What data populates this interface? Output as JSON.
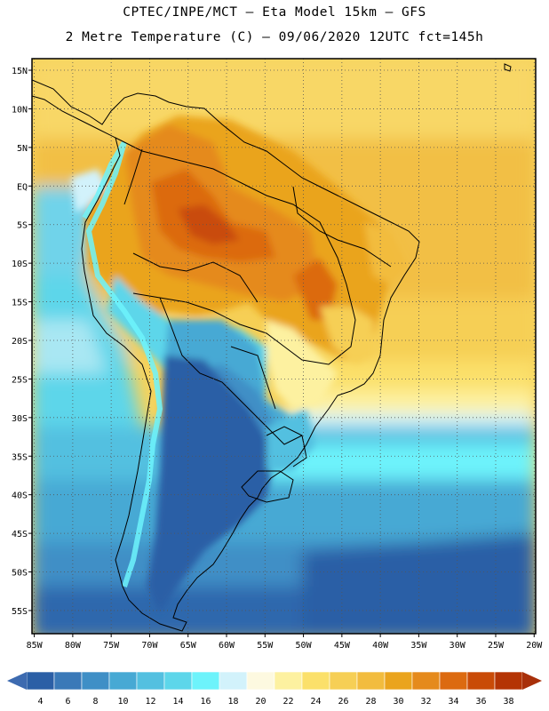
{
  "header": {
    "line1": "CPTEC/INPE/MCT –  Eta Model 15km – GFS",
    "line2": "2 Metre Temperature (C) – 09/06/2020 12UTC fct=145h"
  },
  "map": {
    "lat_labels": [
      "15N",
      "10N",
      "5N",
      "EQ",
      "5S",
      "10S",
      "15S",
      "20S",
      "25S",
      "30S",
      "35S",
      "40S",
      "45S",
      "50S",
      "55S"
    ],
    "lat_values": [
      15,
      10,
      5,
      0,
      -5,
      -10,
      -15,
      -20,
      -25,
      -30,
      -35,
      -40,
      -45,
      -50,
      -55
    ],
    "lon_labels": [
      "85W",
      "80W",
      "75W",
      "70W",
      "65W",
      "60W",
      "55W",
      "50W",
      "45W",
      "40W",
      "35W",
      "30W",
      "25W",
      "20W"
    ],
    "lon_values": [
      -85,
      -80,
      -75,
      -70,
      -65,
      -60,
      -55,
      -50,
      -45,
      -40,
      -35,
      -30,
      -25,
      -20
    ],
    "lon_range": [
      -85.3,
      -19.8
    ],
    "lat_range": [
      -58,
      16.5
    ],
    "grid": "dotted"
  },
  "colorbar": {
    "values": [
      "4",
      "6",
      "8",
      "10",
      "12",
      "14",
      "16",
      "18",
      "20",
      "22",
      "24",
      "26",
      "28",
      "30",
      "32",
      "34",
      "36",
      "38"
    ],
    "colors": [
      "#2b5fa6",
      "#3a79b8",
      "#3f8fc6",
      "#47a9d4",
      "#53c0e0",
      "#5dd6ea",
      "#6df3fb",
      "#d2f2fb",
      "#fdf9e0",
      "#fdf1a0",
      "#fbe06a",
      "#f6cf55",
      "#f2bc3e",
      "#eaa41d",
      "#e58a1c",
      "#dc6a10",
      "#c94b07",
      "#b43404"
    ],
    "under_color": "#3d6bb0",
    "over_color": "#a8300a"
  }
}
